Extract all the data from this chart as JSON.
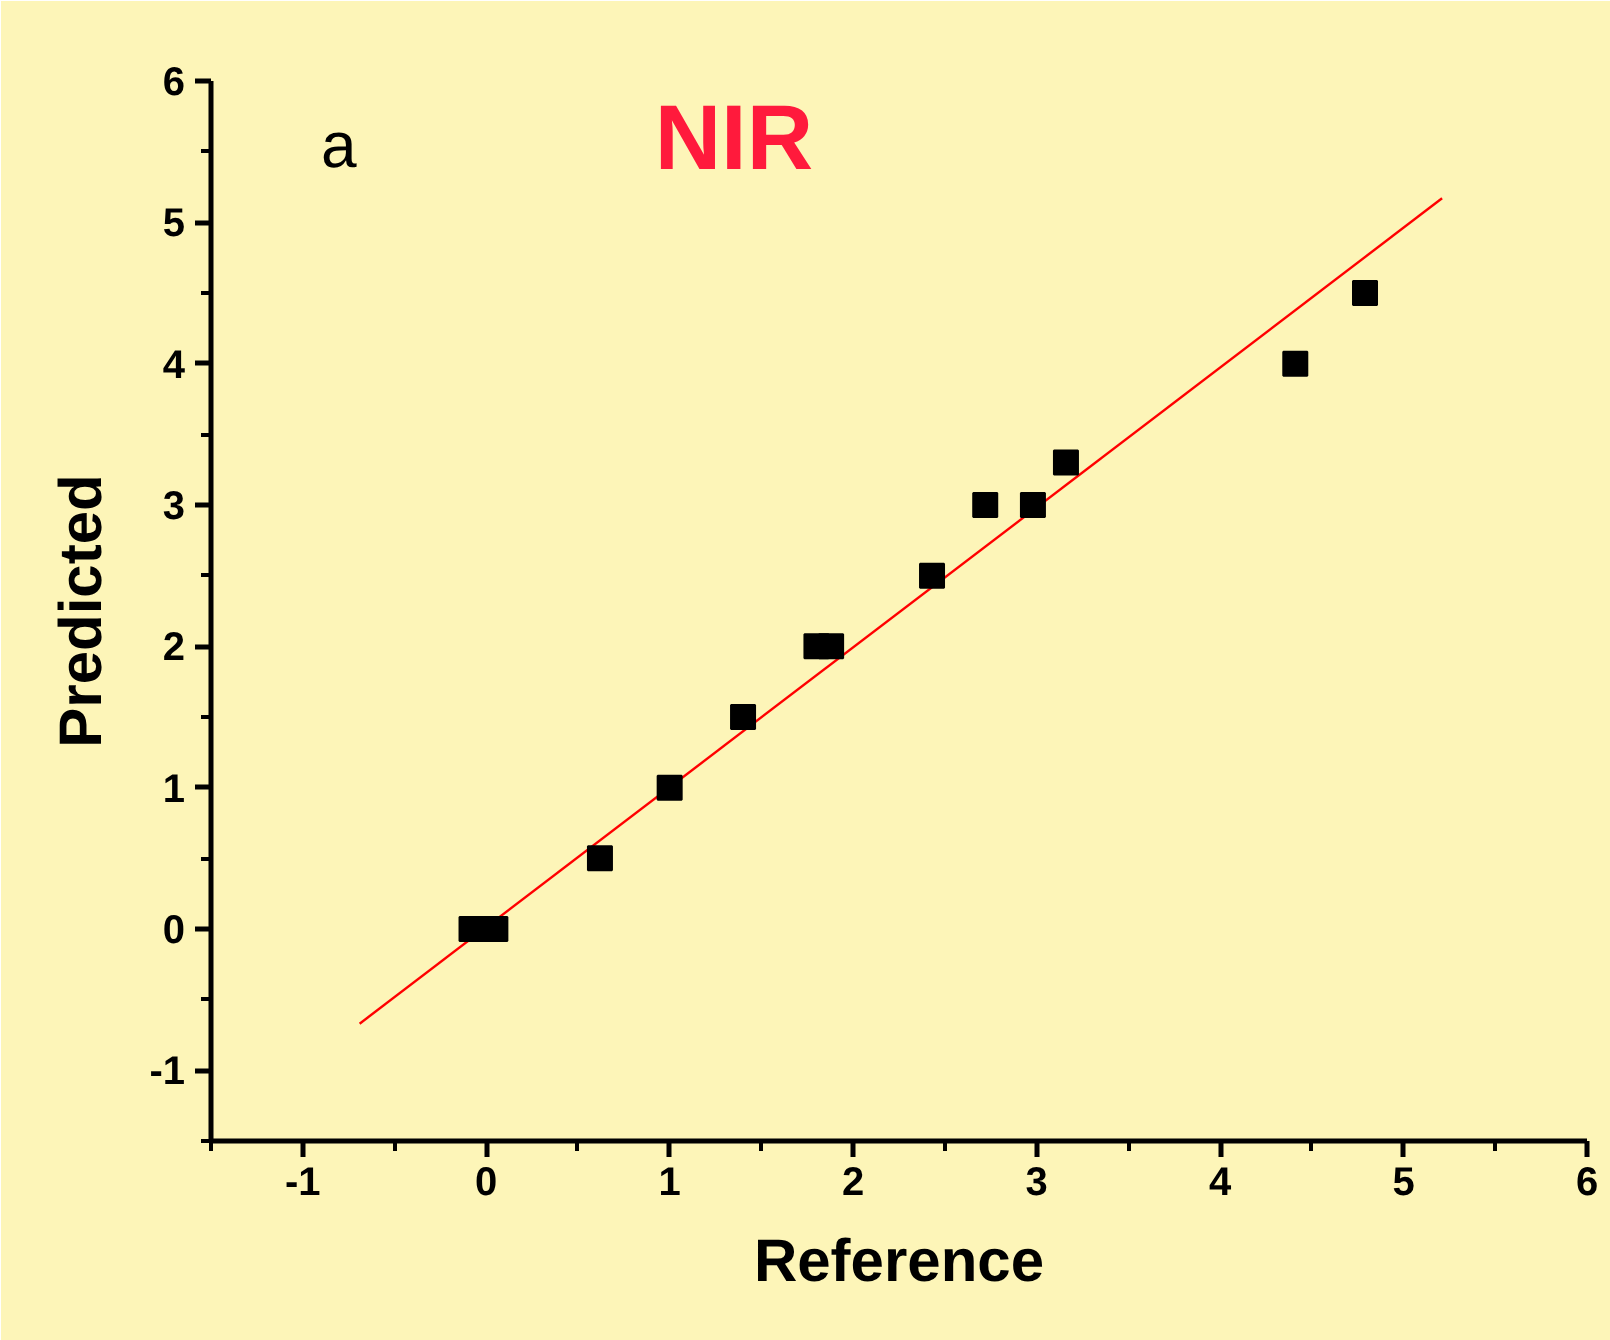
{
  "chart_data": {
    "type": "scatter",
    "title": "NIR",
    "xlabel": "Reference",
    "ylabel": "Predicted",
    "annotations": [
      "a"
    ],
    "xlim": [
      -1.5,
      6
    ],
    "ylim": [
      -1.5,
      6
    ],
    "xticks": [
      -1,
      0,
      1,
      2,
      3,
      4,
      5,
      6
    ],
    "yticks": [
      -1,
      0,
      1,
      2,
      3,
      4,
      5,
      6
    ],
    "grid": false,
    "series": [
      {
        "marker": "square",
        "color": "#000000",
        "x": [
          -0.08,
          0.05,
          0.62,
          1.0,
          1.4,
          1.8,
          1.88,
          2.43,
          2.72,
          2.98,
          3.16,
          4.41,
          4.79
        ],
        "values": [
          0,
          0,
          0.5,
          1,
          1.5,
          2,
          2,
          2.5,
          3,
          3,
          3.3,
          4,
          4.5
        ]
      },
      {
        "type": "line",
        "color": "#ff0000",
        "x": [
          -0.69,
          5.21
        ],
        "values": [
          -0.67,
          5.17
        ]
      }
    ]
  }
}
